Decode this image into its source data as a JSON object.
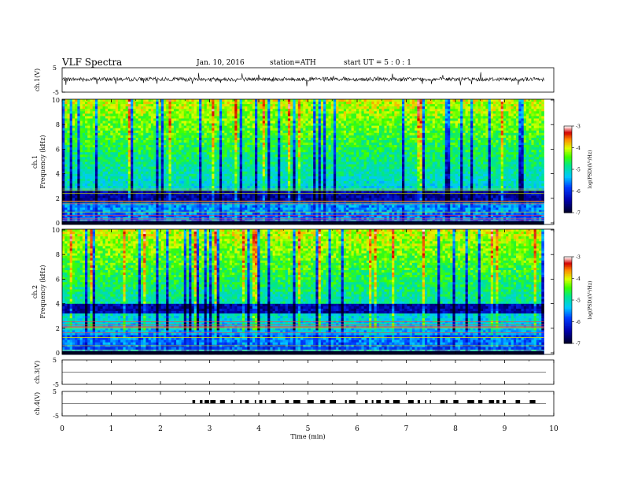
{
  "header": {
    "title": "VLF  Spectra",
    "date": "Jan. 10, 2016",
    "station": "station=ATH",
    "start": "start  UT  =   5  : 0  : 1"
  },
  "chart_data": [
    {
      "type": "line",
      "panel": "ch1-waveform",
      "ylabel": "ch.1(V)",
      "yticks": [
        "5",
        "-5"
      ],
      "ylim": [
        -5,
        5
      ],
      "x_range_min": [
        0,
        9.8
      ],
      "baseline_v": 0.3,
      "description_of_values": "noisy waveform, amplitude about +/-1 V with spikes"
    },
    {
      "type": "heatmap",
      "panel": "ch1-spectrogram",
      "ylabel_top": "ch.1",
      "ylabel": "Frequency  (kHz)",
      "yticks": [
        "10",
        "8",
        "6",
        "4",
        "2",
        "0"
      ],
      "ylim_khz": [
        0,
        10
      ],
      "xlim_min": [
        0,
        9.8
      ],
      "colorbar": {
        "label": "log(PSD)(V²/Hz)",
        "ticks": [
          "-3",
          "-4",
          "-5",
          "-6",
          "-7"
        ],
        "range": [
          -7,
          -3
        ],
        "colors": [
          "#000033",
          "#0000cc",
          "#0080ff",
          "#00ffff",
          "#00ff40",
          "#ffff00",
          "#ff8000",
          "#cc0000",
          "#ffffff"
        ]
      },
      "dark_band_khz": [
        1.8,
        2.6
      ]
    },
    {
      "type": "heatmap",
      "panel": "ch2-spectrogram",
      "ylabel_top": "ch.2",
      "ylabel": "Frequency  (kHz)",
      "yticks": [
        "10",
        "8",
        "6",
        "4",
        "2",
        "0"
      ],
      "ylim_khz": [
        0,
        10
      ],
      "xlim_min": [
        0,
        9.8
      ],
      "colorbar": {
        "label": "log(PSD)(V²/Hz)",
        "ticks": [
          "-3",
          "-4",
          "-5",
          "-6",
          "-7"
        ],
        "range": [
          -7,
          -3
        ]
      },
      "dark_band_khz": [
        3.2,
        4.0
      ]
    },
    {
      "type": "line",
      "panel": "ch3-waveform",
      "ylabel": "ch.3(V)",
      "yticks": [
        "5",
        "-5"
      ],
      "ylim": [
        -5,
        5
      ],
      "baseline_v": 0
    },
    {
      "type": "line",
      "panel": "ch4-waveform",
      "ylabel": "ch.4(V)",
      "yticks": [
        "5",
        "-5"
      ],
      "ylim": [
        -5,
        5
      ],
      "baseline_v": 0,
      "burst_activity_min": [
        2.65,
        9.8
      ]
    }
  ],
  "xaxis": {
    "label": "Time  (min)",
    "ticks": [
      "0",
      "1",
      "2",
      "3",
      "4",
      "5",
      "6",
      "7",
      "8",
      "9",
      "10"
    ],
    "xlim": [
      0,
      10
    ]
  }
}
